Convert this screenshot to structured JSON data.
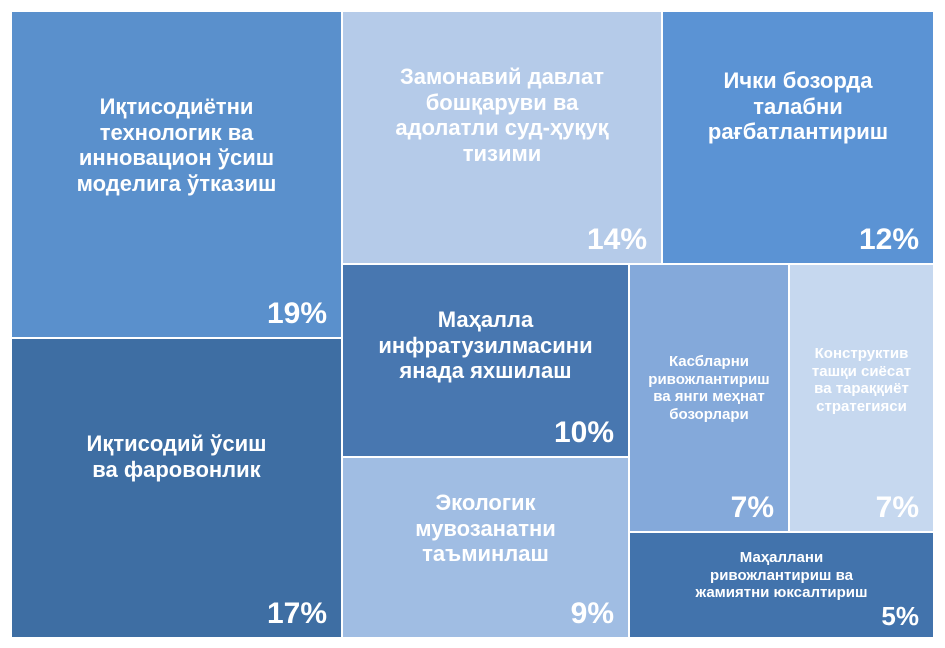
{
  "chart_data": {
    "type": "treemap",
    "items": [
      {
        "label": "Иқтисодиётни\nтехнологик ва\nинновацион ўсиш\nмоделига ўтказиш",
        "value": 19,
        "value_label": "19%",
        "color": "#5a90cc"
      },
      {
        "label": "Иқтисодий ўсиш\nва фаровонлик",
        "value": 17,
        "value_label": "17%",
        "color": "#3e6ea3"
      },
      {
        "label": "Замонавий давлат\nбошқаруви ва\nадолатли суд-ҳуқуқ\nтизими",
        "value": 14,
        "value_label": "14%",
        "color": "#b5cbe9"
      },
      {
        "label": "Ички бозорда\nталабни\nрағбатлантириш",
        "value": 12,
        "value_label": "12%",
        "color": "#5b93d4"
      },
      {
        "label": "Маҳалла\nинфратузилмасини\nянада яхшилаш",
        "value": 10,
        "value_label": "10%",
        "color": "#4877b0"
      },
      {
        "label": "Экологик\nмувозанатни\nтаъминлаш",
        "value": 9,
        "value_label": "9%",
        "color": "#a0bde3"
      },
      {
        "label": "Касбларни\nривожлантириш\nва янги меҳнат\nбозорлари",
        "value": 7,
        "value_label": "7%",
        "color": "#84a9da"
      },
      {
        "label": "Конструктив\nташқи сиёсат\nва тараққиёт\nстратегияси",
        "value": 7,
        "value_label": "7%",
        "color": "#c6d8ef"
      },
      {
        "label": "Маҳаллани\nривожлантириш ва\nжамиятни юксалтириш",
        "value": 5,
        "value_label": "5%",
        "color": "#4273ac"
      }
    ]
  }
}
